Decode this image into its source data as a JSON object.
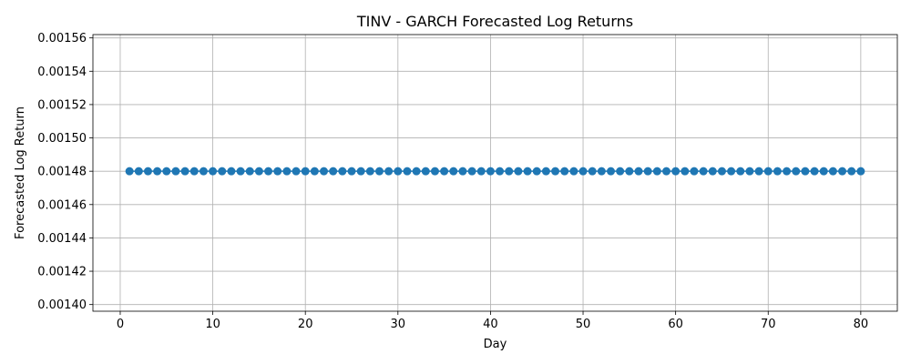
{
  "chart_data": {
    "type": "line",
    "title": "TINV - GARCH Forecasted Log Returns",
    "xlabel": "Day",
    "ylabel": "Forecasted Log Return",
    "xlim": [
      -2.95,
      83.95
    ],
    "ylim": [
      0.001396,
      0.001562
    ],
    "xticks": [
      0,
      10,
      20,
      30,
      40,
      50,
      60,
      70,
      80
    ],
    "yticks": [
      0.0014,
      0.00142,
      0.00144,
      0.00146,
      0.00148,
      0.0015,
      0.00152,
      0.00154,
      0.00156
    ],
    "ytick_labels": [
      "0.00140",
      "0.00142",
      "0.00144",
      "0.00146",
      "0.00148",
      "0.00150",
      "0.00152",
      "0.00154",
      "0.00156"
    ],
    "grid": true,
    "series": [
      {
        "color": "#1f77b4",
        "marker": "circle",
        "x_start": 1,
        "x_end": 80,
        "constant_value": 0.00148
      }
    ]
  }
}
